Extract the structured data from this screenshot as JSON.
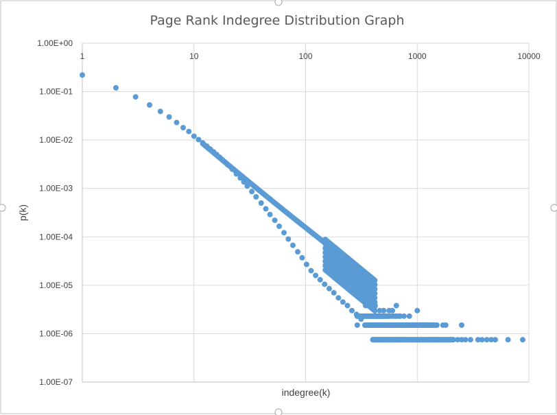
{
  "chart_data": {
    "type": "scatter",
    "title": "Page Rank Indegree Distribution Graph",
    "xlabel": "indegree(k)",
    "ylabel": "p(k)",
    "x_scale": "log",
    "y_scale": "log",
    "xlim": [
      1,
      10000
    ],
    "ylim": [
      1e-07,
      1
    ],
    "x_ticks": [
      1,
      10,
      100,
      1000,
      10000
    ],
    "x_tick_labels": [
      "1",
      "10",
      "100",
      "1000",
      "10000"
    ],
    "y_ticks": [
      1,
      0.1,
      0.01,
      0.001,
      0.0001,
      1e-05,
      1e-06,
      1e-07
    ],
    "y_tick_labels": [
      "1.00E+00",
      "1.00E-01",
      "1.00E-02",
      "1.00E-03",
      "1.00E-04",
      "1.00E-05",
      "1.00E-06",
      "1.00E-07"
    ],
    "x_axis_position": "top",
    "grid": true,
    "legend": false,
    "marker_color": "#5b9bd5",
    "series": [
      {
        "x": [
          1,
          2,
          3,
          4,
          5,
          6,
          7,
          8,
          9,
          10,
          11,
          12,
          13,
          14,
          15,
          16,
          17,
          18,
          19,
          20,
          22,
          24,
          26,
          28,
          30,
          33,
          36,
          40,
          44,
          48,
          53,
          58,
          64,
          70,
          77,
          85,
          93,
          102,
          112,
          123,
          135,
          148,
          163,
          179,
          197,
          216,
          237,
          260,
          286,
          314,
          345,
          380,
          420,
          460,
          500,
          560,
          600,
          650,
          700,
          1000,
          290,
          310,
          330,
          350,
          370,
          390,
          410,
          430,
          450,
          470,
          490,
          510,
          530,
          550,
          580,
          610,
          640,
          660,
          700,
          760,
          850,
          950,
          1050,
          1200,
          1350,
          1500,
          1700,
          1800,
          2500,
          290,
          400,
          420,
          440,
          460,
          480,
          500,
          530,
          560,
          600,
          650,
          700,
          750,
          800,
          900,
          1000,
          1100,
          1200,
          1300,
          1400,
          1500,
          1700,
          1900,
          2100,
          2300,
          2500,
          2700,
          3000,
          3500,
          3800,
          4200,
          4600,
          5000,
          6500,
          8800
        ],
        "y": [
          0.22,
          0.12,
          0.078,
          0.053,
          0.039,
          0.03,
          0.023,
          0.018,
          0.015,
          0.012,
          0.0102,
          0.0087,
          0.0075,
          0.0065,
          0.0057,
          0.005,
          0.0044,
          0.0039,
          0.0035,
          0.0031,
          0.0025,
          0.002,
          0.00165,
          0.00136,
          0.00112,
          0.00086,
          0.00067,
          0.0005,
          0.00038,
          0.00029,
          0.00022,
          0.000165,
          0.000122,
          9e-05,
          6.7e-05,
          4.9e-05,
          3.7e-05,
          2.7e-05,
          2e-05,
          1.6e-05,
          1.3e-05,
          1.05e-05,
          8.5e-06,
          7e-06,
          5.5e-06,
          4.5e-06,
          3.8e-06,
          3e-06,
          2.5e-06,
          2e-06,
          3.8e-06,
          3.8e-06,
          3.8e-06,
          3e-06,
          3e-06,
          3e-06,
          3e-06,
          3.8e-06,
          2.3e-06,
          3e-06,
          2.3e-06,
          2.3e-06,
          2.3e-06,
          2.3e-06,
          2.3e-06,
          2.3e-06,
          2.3e-06,
          2.3e-06,
          2.3e-06,
          2.3e-06,
          2.3e-06,
          2.3e-06,
          2.3e-06,
          2.3e-06,
          2.3e-06,
          2.3e-06,
          2.3e-06,
          2.3e-06,
          2.3e-06,
          2.3e-06,
          2.3e-06,
          1.5e-06,
          1.5e-06,
          1.5e-06,
          1.5e-06,
          1.5e-06,
          1.5e-06,
          1.5e-06,
          1.5e-06,
          1.5e-06,
          7.5e-07,
          7.5e-07,
          7.5e-07,
          7.5e-07,
          7.5e-07,
          7.5e-07,
          7.5e-07,
          7.5e-07,
          7.5e-07,
          7.5e-07,
          7.5e-07,
          7.5e-07,
          7.5e-07,
          7.5e-07,
          7.5e-07,
          7.5e-07,
          7.5e-07,
          7.5e-07,
          7.5e-07,
          7.5e-07,
          7.5e-07,
          7.5e-07,
          7.5e-07,
          7.5e-07,
          7.5e-07,
          7.5e-07,
          7.5e-07,
          7.5e-07,
          7.5e-07,
          7.5e-07,
          7.5e-07,
          7.5e-07,
          7.5e-07,
          7.5e-07
        ]
      }
    ]
  }
}
